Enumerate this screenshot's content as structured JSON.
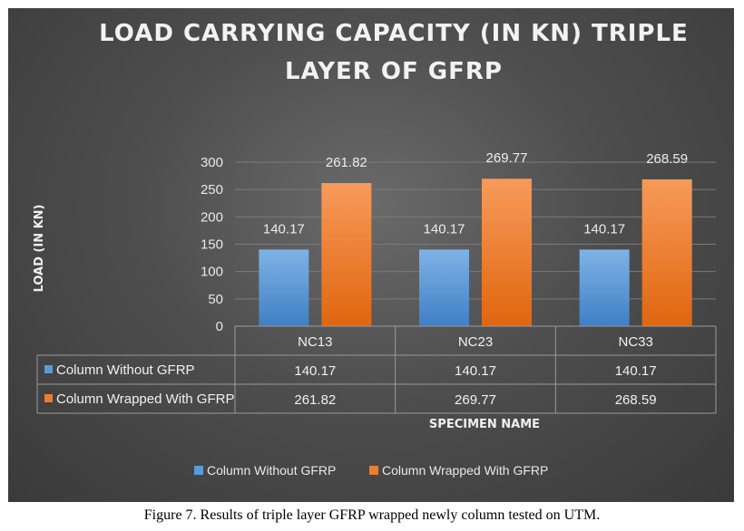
{
  "caption": "Figure 7. Results of triple layer GFRP wrapped newly column tested on UTM.",
  "chart_data": {
    "type": "bar",
    "title_lines": [
      "LOAD CARRYING CAPACITY (IN KN) TRIPLE",
      "LAYER OF GFRP"
    ],
    "xlabel": "SPECIMEN NAME",
    "ylabel": "LOAD (IN KN)",
    "ylim": [
      0,
      300
    ],
    "yticks": [
      0,
      50,
      100,
      150,
      200,
      250,
      300
    ],
    "categories": [
      "NC13",
      "NC23",
      "NC33"
    ],
    "series": [
      {
        "name": "Column Without GFRP",
        "values": [
          140.17,
          140.17,
          140.17
        ],
        "color": "#5b9bd5"
      },
      {
        "name": "Column Wrapped With GFRP",
        "values": [
          261.82,
          269.77,
          268.59
        ],
        "color": "#ed7d31"
      }
    ],
    "value_labels": [
      [
        "140.17",
        "140.17",
        "140.17"
      ],
      [
        "261.82",
        "269.77",
        "268.59"
      ]
    ],
    "data_table": true,
    "legend_position": "bottom",
    "grid": true
  }
}
